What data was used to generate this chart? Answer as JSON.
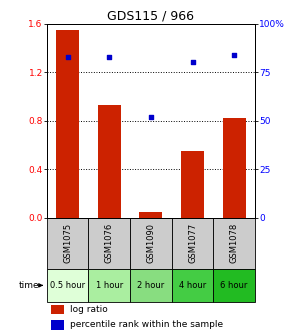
{
  "title": "GDS115 / 966",
  "samples": [
    "GSM1075",
    "GSM1076",
    "GSM1090",
    "GSM1077",
    "GSM1078"
  ],
  "time_labels": [
    "0.5 hour",
    "1 hour",
    "2 hour",
    "4 hour",
    "6 hour"
  ],
  "log_ratio": [
    1.55,
    0.93,
    0.05,
    0.55,
    0.82
  ],
  "percentile": [
    83,
    83,
    52,
    80,
    84
  ],
  "bar_color": "#cc2200",
  "dot_color": "#0000cc",
  "ylim_left": [
    0,
    1.6
  ],
  "ylim_right": [
    0,
    100
  ],
  "yticks_left": [
    0,
    0.4,
    0.8,
    1.2,
    1.6
  ],
  "yticks_right": [
    0,
    25,
    50,
    75,
    100
  ],
  "ytick_labels_right": [
    "0",
    "25",
    "50",
    "75",
    "100%"
  ],
  "time_bg_colors": [
    "#dfffd8",
    "#aaeea0",
    "#88dd80",
    "#44cc44",
    "#22bb22"
  ],
  "sample_bg_color": "#cccccc",
  "title_fontsize": 9,
  "label_fontsize": 6,
  "tick_fontsize": 6.5,
  "legend_fontsize": 6.5,
  "bar_width": 0.55
}
